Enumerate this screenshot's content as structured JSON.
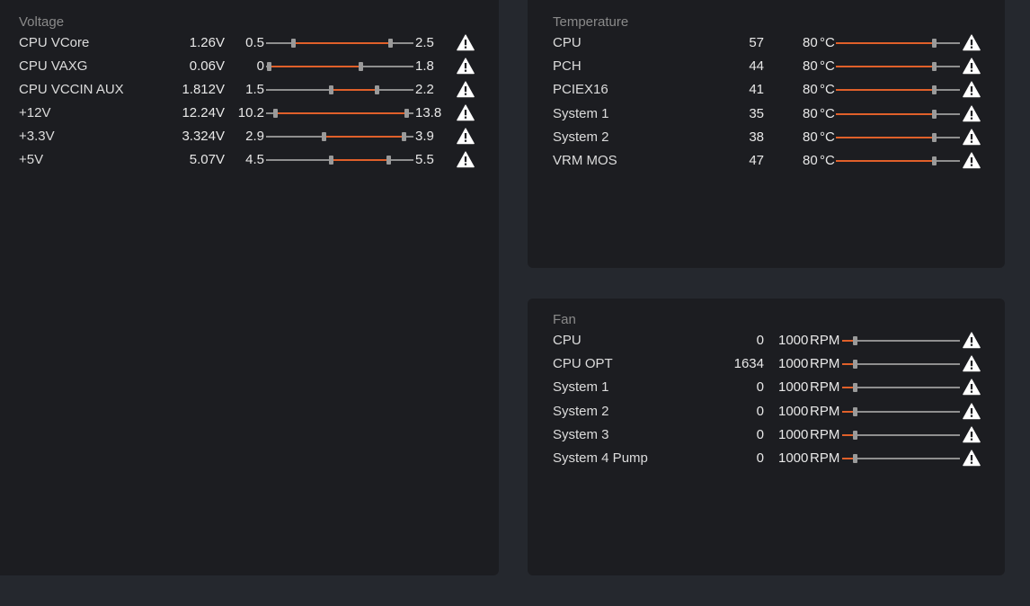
{
  "voltage": {
    "title": "Voltage",
    "rows": [
      {
        "name": "CPU VCore",
        "value": "1.26V",
        "min": "0.5",
        "max": "2.5",
        "low": 0.18,
        "high": 0.84
      },
      {
        "name": "CPU VAXG",
        "value": "0.06V",
        "min": "0",
        "max": "1.8",
        "low": 0.02,
        "high": 0.64
      },
      {
        "name": "CPU VCCIN AUX",
        "value": "1.812V",
        "min": "1.5",
        "max": "2.2",
        "low": 0.44,
        "high": 0.75
      },
      {
        "name": "+12V",
        "value": "12.24V",
        "min": "10.2",
        "max": "13.8",
        "low": 0.06,
        "high": 0.95
      },
      {
        "name": "+3.3V",
        "value": "3.324V",
        "min": "2.9",
        "max": "3.9",
        "low": 0.39,
        "high": 0.93
      },
      {
        "name": "+5V",
        "value": "5.07V",
        "min": "4.5",
        "max": "5.5",
        "low": 0.44,
        "high": 0.83
      }
    ]
  },
  "temperature": {
    "title": "Temperature",
    "rows": [
      {
        "name": "CPU",
        "value": "57",
        "limit": "80",
        "unit": "°C",
        "level": 0.79
      },
      {
        "name": "PCH",
        "value": "44",
        "limit": "80",
        "unit": "°C",
        "level": 0.79
      },
      {
        "name": "PCIEX16",
        "value": "41",
        "limit": "80",
        "unit": "°C",
        "level": 0.79
      },
      {
        "name": "System 1",
        "value": "35",
        "limit": "80",
        "unit": "°C",
        "level": 0.79
      },
      {
        "name": "System 2",
        "value": "38",
        "limit": "80",
        "unit": "°C",
        "level": 0.79
      },
      {
        "name": "VRM MOS",
        "value": "47",
        "limit": "80",
        "unit": "°C",
        "level": 0.79
      }
    ]
  },
  "fan": {
    "title": "Fan",
    "rows": [
      {
        "name": "CPU",
        "value": "0",
        "limit": "1000",
        "unit": "RPM",
        "level": 0.11
      },
      {
        "name": "CPU OPT",
        "value": "1634",
        "limit": "1000",
        "unit": "RPM",
        "level": 0.11
      },
      {
        "name": "System 1",
        "value": "0",
        "limit": "1000",
        "unit": "RPM",
        "level": 0.11
      },
      {
        "name": "System 2",
        "value": "0",
        "limit": "1000",
        "unit": "RPM",
        "level": 0.11
      },
      {
        "name": "System 3",
        "value": "0",
        "limit": "1000",
        "unit": "RPM",
        "level": 0.11
      },
      {
        "name": "System 4 Pump",
        "value": "0",
        "limit": "1000",
        "unit": "RPM",
        "level": 0.11
      }
    ]
  },
  "colors": {
    "accent": "#e0602a",
    "track": "#8f8f8f",
    "panel": "#1c1d21",
    "background": "#25282e"
  },
  "icons": {
    "warning": "warning-triangle-icon"
  }
}
